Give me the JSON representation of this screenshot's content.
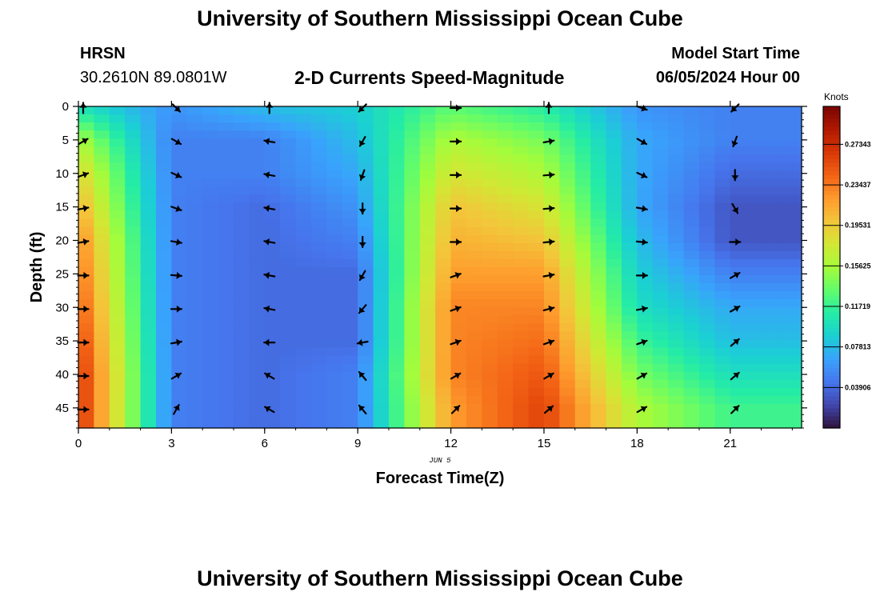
{
  "header": {
    "title": "University of Southern Mississippi Ocean Cube",
    "station": "HRSN",
    "coords": "30.2610N  89.0801W",
    "subtitle": "2-D Currents Speed-Magnitude",
    "model_start_label": "Model Start Time",
    "model_start_value": "06/05/2024 Hour 00"
  },
  "footer": {
    "title": "University of Southern Mississippi Ocean Cube"
  },
  "chart_data": {
    "type": "heatmap",
    "title": "2-D Currents Speed-Magnitude",
    "xlabel": "Forecast Time(Z)",
    "ylabel": "Depth (ft)",
    "x_date_label": "JUN 5",
    "xlim": [
      0,
      23.3
    ],
    "ylim": [
      48,
      0
    ],
    "x_ticks": [
      0,
      3,
      6,
      9,
      12,
      15,
      18,
      21
    ],
    "y_ticks": [
      0,
      5,
      10,
      15,
      20,
      25,
      30,
      35,
      40,
      45
    ],
    "colorbar": {
      "label": "Knots",
      "range": [
        0.0,
        0.31
      ],
      "ticks": [
        "0.03906",
        "0.07813",
        "0.11719",
        "0.15625",
        "0.19531",
        "0.23437",
        "0.27343"
      ],
      "colormap": [
        "#30123b",
        "#4145ab",
        "#4675ed",
        "#39a2fc",
        "#1bcfd4",
        "#24eca6",
        "#61fc6c",
        "#a4fc3b",
        "#d1e834",
        "#f3c63a",
        "#fe9b2d",
        "#f36315",
        "#d93806",
        "#b11901",
        "#7a0403"
      ]
    },
    "time_hours": [
      0,
      3,
      6,
      9,
      12,
      15,
      18,
      21
    ],
    "depth_ft": [
      0,
      5,
      10,
      15,
      20,
      25,
      30,
      35,
      40,
      45
    ],
    "speed_knots": [
      [
        0.1,
        0.06,
        0.08,
        0.09,
        0.13,
        0.11,
        0.06,
        0.05
      ],
      [
        0.16,
        0.05,
        0.05,
        0.08,
        0.16,
        0.14,
        0.07,
        0.05
      ],
      [
        0.19,
        0.05,
        0.05,
        0.07,
        0.18,
        0.16,
        0.07,
        0.04
      ],
      [
        0.21,
        0.05,
        0.04,
        0.06,
        0.2,
        0.18,
        0.07,
        0.03
      ],
      [
        0.23,
        0.05,
        0.04,
        0.05,
        0.21,
        0.2,
        0.08,
        0.03
      ],
      [
        0.24,
        0.05,
        0.04,
        0.04,
        0.22,
        0.22,
        0.09,
        0.05
      ],
      [
        0.25,
        0.05,
        0.04,
        0.04,
        0.23,
        0.23,
        0.1,
        0.07
      ],
      [
        0.26,
        0.05,
        0.04,
        0.04,
        0.23,
        0.24,
        0.12,
        0.08
      ],
      [
        0.27,
        0.05,
        0.04,
        0.05,
        0.23,
        0.25,
        0.14,
        0.1
      ],
      [
        0.27,
        0.05,
        0.04,
        0.05,
        0.22,
        0.26,
        0.16,
        0.12
      ]
    ],
    "vector_directions_deg": [
      [
        0,
        135,
        0,
        225,
        90,
        0,
        110,
        225
      ],
      [
        60,
        120,
        280,
        210,
        90,
        80,
        120,
        200
      ],
      [
        70,
        115,
        280,
        200,
        90,
        85,
        115,
        180
      ],
      [
        80,
        110,
        280,
        180,
        90,
        85,
        100,
        150
      ],
      [
        80,
        100,
        280,
        180,
        90,
        85,
        95,
        90
      ],
      [
        90,
        95,
        280,
        210,
        70,
        80,
        90,
        60
      ],
      [
        90,
        90,
        280,
        220,
        70,
        75,
        80,
        60
      ],
      [
        90,
        80,
        270,
        260,
        70,
        70,
        70,
        50
      ],
      [
        90,
        60,
        300,
        320,
        60,
        60,
        60,
        50
      ],
      [
        90,
        30,
        300,
        320,
        45,
        50,
        60,
        45
      ]
    ]
  }
}
